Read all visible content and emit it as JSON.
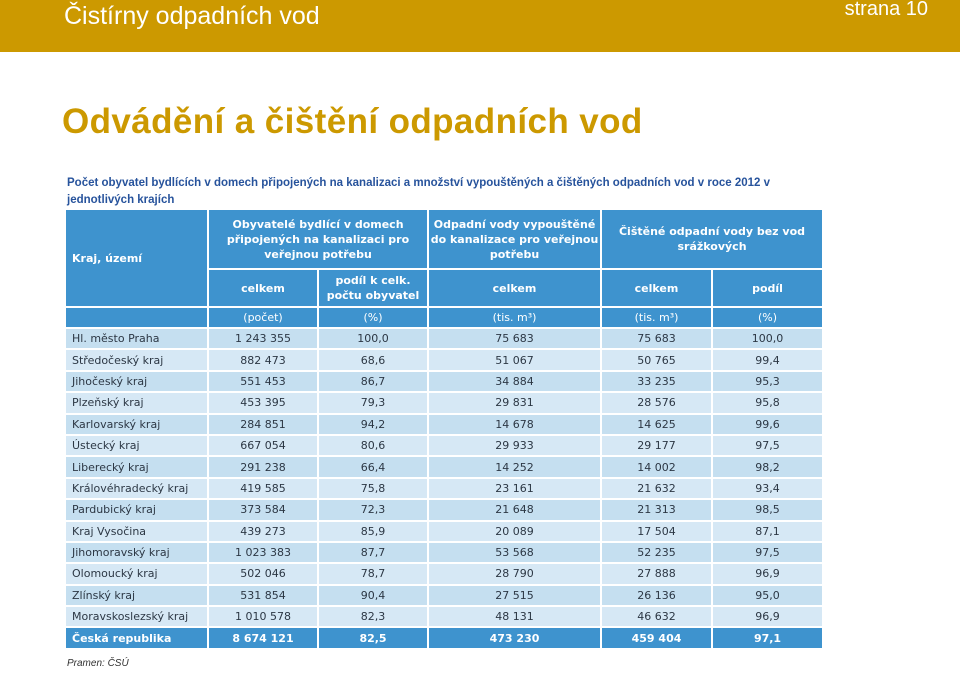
{
  "header": {
    "title": "Čistírny odpadních vod",
    "page": "strana 10"
  },
  "slide": {
    "heading": "Odvádění a čištění odpadních vod"
  },
  "table": {
    "caption": "Počet obyvatel bydlících v domech připojených na kanalizaci a množství vypouštěných a čištěných odpadních vod v roce 2012 v jednotlivých krajích",
    "col_region": "Kraj, území",
    "group1": "Obyvatelé bydlící v domech připojených na kanalizaci pro veřejnou potřebu",
    "group2": "Odpadní vody vypouštěné do kanalizace pro veřejnou potřebu",
    "group3": "Čištěné odpadní vody bez vod srážkových",
    "sub_celkem": "celkem",
    "sub_podil_obyv": "podíl k celk. počtu obyvatel",
    "sub_podil": "podíl",
    "unit_pocet": "(počet)",
    "unit_pct": "(%)",
    "unit_tism3": "(tis. m³)",
    "rows": [
      {
        "name": "Hl. město Praha",
        "pop": "1 243 355",
        "share": "100,0",
        "waste": "75 683",
        "treated": "75 683",
        "tshare": "100,0"
      },
      {
        "name": "Středočeský kraj",
        "pop": "882 473",
        "share": "68,6",
        "waste": "51 067",
        "treated": "50 765",
        "tshare": "99,4"
      },
      {
        "name": "Jihočeský kraj",
        "pop": "551 453",
        "share": "86,7",
        "waste": "34 884",
        "treated": "33 235",
        "tshare": "95,3"
      },
      {
        "name": "Plzeňský kraj",
        "pop": "453 395",
        "share": "79,3",
        "waste": "29 831",
        "treated": "28 576",
        "tshare": "95,8"
      },
      {
        "name": "Karlovarský kraj",
        "pop": "284 851",
        "share": "94,2",
        "waste": "14 678",
        "treated": "14 625",
        "tshare": "99,6"
      },
      {
        "name": "Ústecký kraj",
        "pop": "667 054",
        "share": "80,6",
        "waste": "29 933",
        "treated": "29 177",
        "tshare": "97,5"
      },
      {
        "name": "Liberecký kraj",
        "pop": "291 238",
        "share": "66,4",
        "waste": "14 252",
        "treated": "14 002",
        "tshare": "98,2"
      },
      {
        "name": "Královéhradecký kraj",
        "pop": "419 585",
        "share": "75,8",
        "waste": "23 161",
        "treated": "21 632",
        "tshare": "93,4"
      },
      {
        "name": "Pardubický kraj",
        "pop": "373 584",
        "share": "72,3",
        "waste": "21 648",
        "treated": "21 313",
        "tshare": "98,5"
      },
      {
        "name": "Kraj Vysočina",
        "pop": "439 273",
        "share": "85,9",
        "waste": "20 089",
        "treated": "17 504",
        "tshare": "87,1"
      },
      {
        "name": "Jihomoravský kraj",
        "pop": "1 023 383",
        "share": "87,7",
        "waste": "53 568",
        "treated": "52 235",
        "tshare": "97,5"
      },
      {
        "name": "Olomoucký kraj",
        "pop": "502 046",
        "share": "78,7",
        "waste": "28 790",
        "treated": "27 888",
        "tshare": "96,9"
      },
      {
        "name": "Zlínský kraj",
        "pop": "531 854",
        "share": "90,4",
        "waste": "27 515",
        "treated": "26 136",
        "tshare": "95,0"
      },
      {
        "name": "Moravskoslezský kraj",
        "pop": "1 010 578",
        "share": "82,3",
        "waste": "48 131",
        "treated": "46 632",
        "tshare": "96,9"
      }
    ],
    "total": {
      "name": "Česká republika",
      "pop": "8 674 121",
      "share": "82,5",
      "waste": "473 230",
      "treated": "459 404",
      "tshare": "97,1"
    },
    "source": "Pramen: ČSÚ"
  }
}
